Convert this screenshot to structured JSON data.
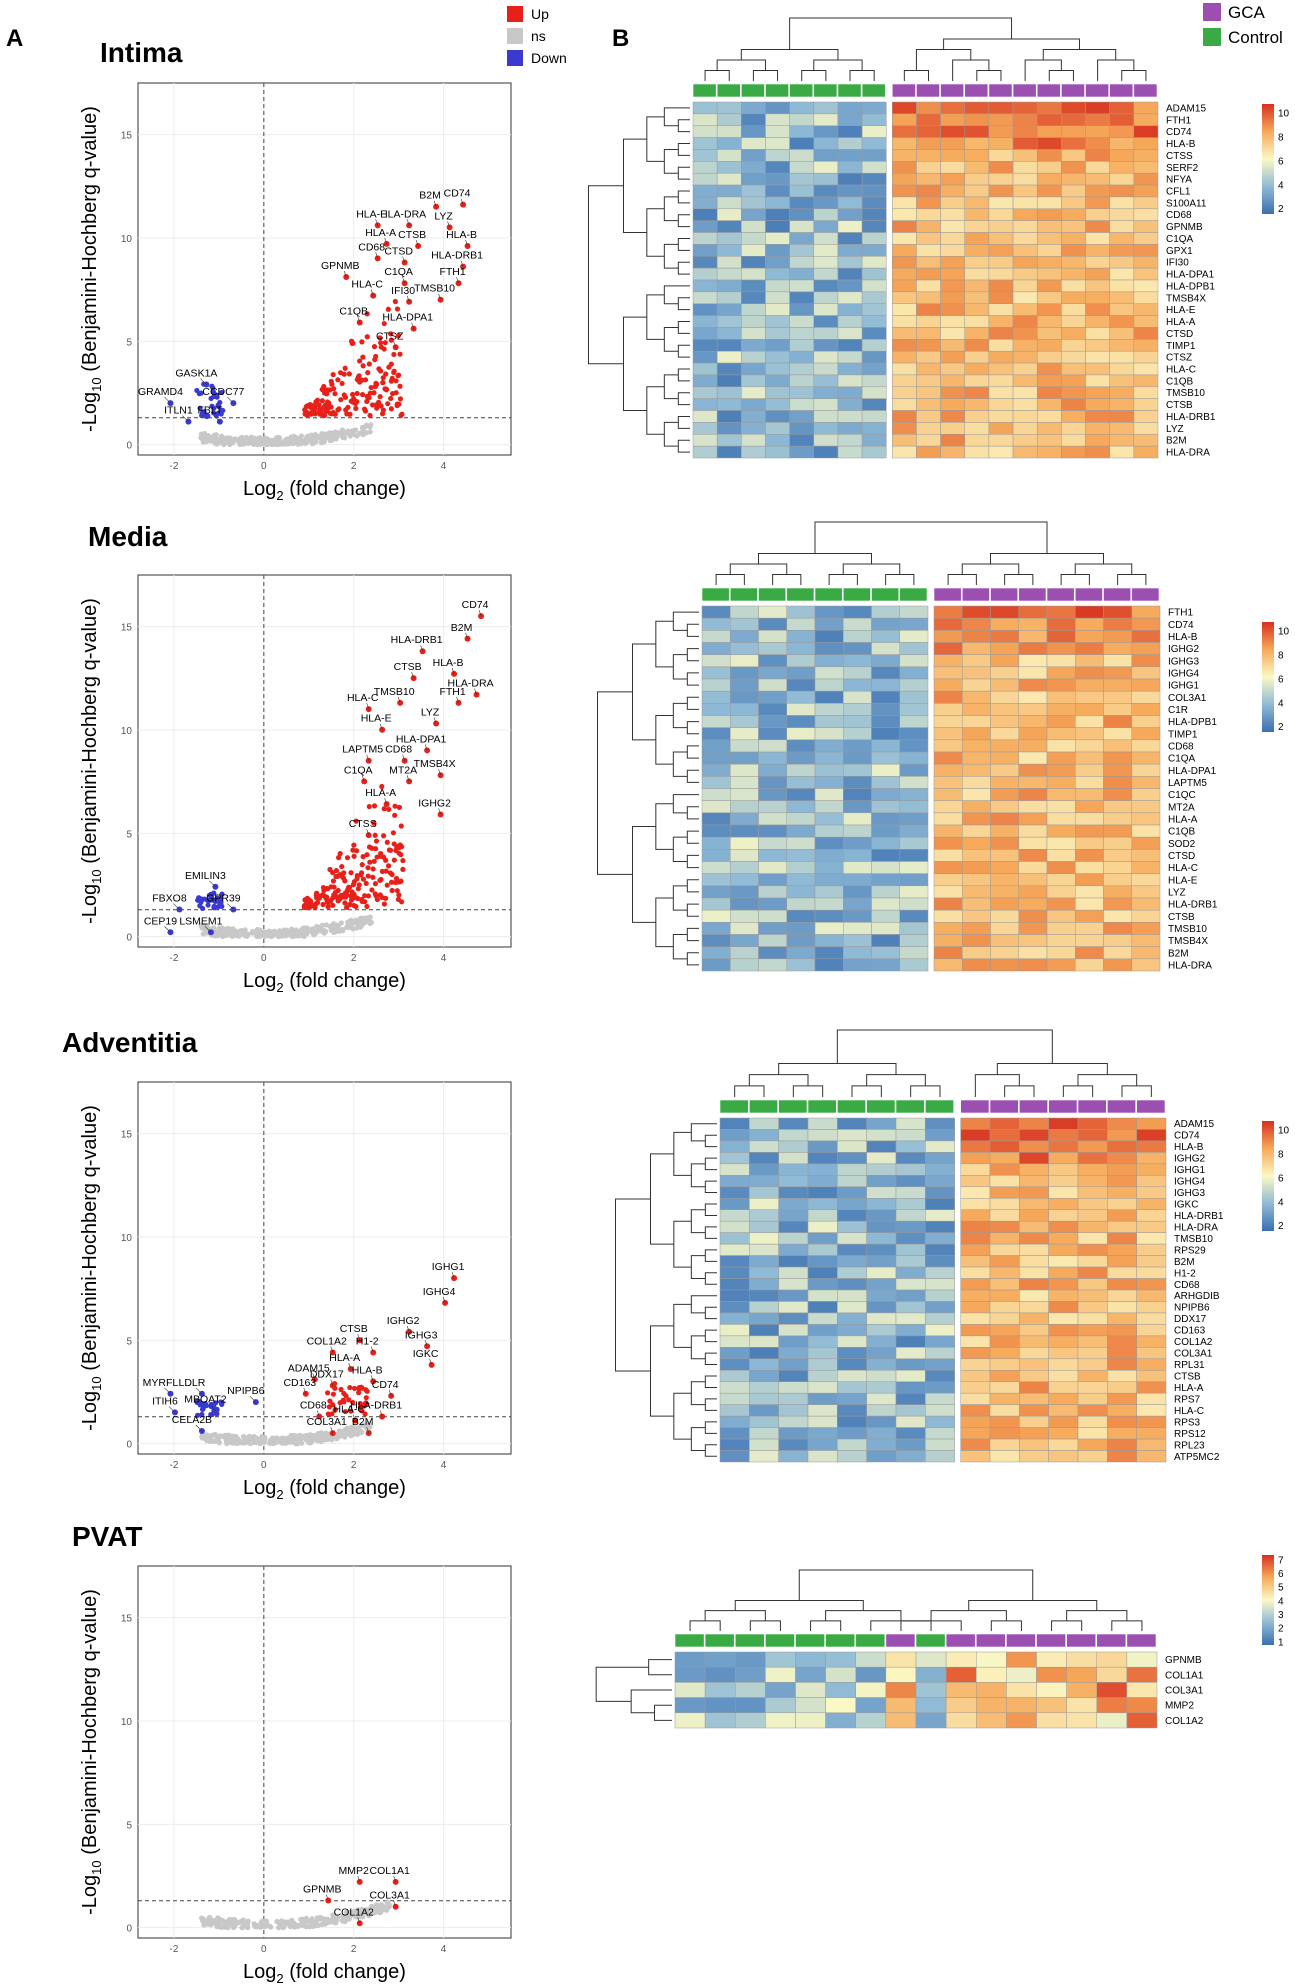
{
  "panel_labels": {
    "A": "A",
    "B": "B"
  },
  "legend": [
    {
      "label": "Up",
      "color": "#e8201a"
    },
    {
      "label": "ns",
      "color": "#c8c8c8"
    },
    {
      "label": "Down",
      "color": "#3a3ad0"
    }
  ],
  "group_legend": [
    {
      "label": "GCA",
      "color": "#9b4fb0"
    },
    {
      "label": "Control",
      "color": "#3aaa44"
    }
  ],
  "axis": {
    "xlabel": "Log",
    "xlabel_sub": "2",
    "xlabel_tail": " (fold change)",
    "ylabel_pre": "-Log",
    "ylabel_sub": "10",
    "ylabel_tail": " (Benjamini-Hochberg q-value)",
    "xticks": [
      "-2",
      "0",
      "2",
      "4"
    ],
    "yticks": [
      "0",
      "5",
      "10",
      "15"
    ]
  },
  "colorbar_ticks_main": [
    "2",
    "4",
    "6",
    "8",
    "10"
  ],
  "colorbar_ticks_pvat": [
    "1",
    "2",
    "3",
    "4",
    "5",
    "6",
    "7"
  ],
  "chart_data": [
    {
      "type": "scatter",
      "title": "Intima",
      "xlim": [
        -2.8,
        5.5
      ],
      "ylim": [
        -0.5,
        17.5
      ],
      "threshold_q": 1.3,
      "labels": [
        {
          "text": "B2M",
          "x": 3.7,
          "y": 11.9
        },
        {
          "text": "CD74",
          "x": 4.3,
          "y": 12.0
        },
        {
          "text": "HLA-E",
          "x": 2.4,
          "y": 11.0
        },
        {
          "text": "HLA-DRA",
          "x": 3.1,
          "y": 11.0
        },
        {
          "text": "LYZ",
          "x": 4.0,
          "y": 10.9
        },
        {
          "text": "HLA-A",
          "x": 2.6,
          "y": 10.1
        },
        {
          "text": "CTSB",
          "x": 3.3,
          "y": 10.0
        },
        {
          "text": "HLA-B",
          "x": 4.4,
          "y": 10.0
        },
        {
          "text": "CD68",
          "x": 2.4,
          "y": 9.4
        },
        {
          "text": "CTSD",
          "x": 3.0,
          "y": 9.2
        },
        {
          "text": "HLA-DRB1",
          "x": 4.3,
          "y": 9.0
        },
        {
          "text": "GPNMB",
          "x": 1.7,
          "y": 8.5
        },
        {
          "text": "C1QA",
          "x": 3.0,
          "y": 8.2
        },
        {
          "text": "FTH1",
          "x": 4.2,
          "y": 8.2
        },
        {
          "text": "HLA-C",
          "x": 2.3,
          "y": 7.6
        },
        {
          "text": "IFI30",
          "x": 3.1,
          "y": 7.3
        },
        {
          "text": "TMSB10",
          "x": 3.8,
          "y": 7.4
        },
        {
          "text": "C1QB",
          "x": 2.0,
          "y": 6.3
        },
        {
          "text": "HLA-DPA1",
          "x": 3.2,
          "y": 6.0
        },
        {
          "text": "CTSZ",
          "x": 2.8,
          "y": 5.1
        },
        {
          "text": "GASK1A",
          "x": -1.5,
          "y": 3.3
        },
        {
          "text": "GRAMD4",
          "x": -2.3,
          "y": 2.4
        },
        {
          "text": "CCDC77",
          "x": -0.9,
          "y": 2.4
        },
        {
          "text": "ITLN1",
          "x": -1.9,
          "y": 1.5
        },
        {
          "text": "FBLT",
          "x": -1.2,
          "y": 1.5
        }
      ]
    },
    {
      "type": "scatter",
      "title": "Media",
      "xlim": [
        -2.8,
        5.5
      ],
      "ylim": [
        -0.5,
        17.5
      ],
      "threshold_q": 1.3,
      "labels": [
        {
          "text": "CD74",
          "x": 4.7,
          "y": 15.9
        },
        {
          "text": "B2M",
          "x": 4.4,
          "y": 14.8
        },
        {
          "text": "HLA-DRB1",
          "x": 3.4,
          "y": 14.2
        },
        {
          "text": "CTSB",
          "x": 3.2,
          "y": 12.9
        },
        {
          "text": "HLA-B",
          "x": 4.1,
          "y": 13.1
        },
        {
          "text": "HLA-DRA",
          "x": 4.6,
          "y": 12.1
        },
        {
          "text": "HLA-C",
          "x": 2.2,
          "y": 11.4
        },
        {
          "text": "TMSB10",
          "x": 2.9,
          "y": 11.7
        },
        {
          "text": "FTH1",
          "x": 4.2,
          "y": 11.7
        },
        {
          "text": "HLA-E",
          "x": 2.5,
          "y": 10.4
        },
        {
          "text": "LYZ",
          "x": 3.7,
          "y": 10.7
        },
        {
          "text": "HLA-DPA1",
          "x": 3.5,
          "y": 9.4
        },
        {
          "text": "LAPTM5",
          "x": 2.2,
          "y": 8.9
        },
        {
          "text": "CD68",
          "x": 3.0,
          "y": 8.9
        },
        {
          "text": "TMSB4X",
          "x": 3.8,
          "y": 8.2
        },
        {
          "text": "C1QA",
          "x": 2.1,
          "y": 7.9
        },
        {
          "text": "MT2A",
          "x": 3.1,
          "y": 7.9
        },
        {
          "text": "HLA-A",
          "x": 2.6,
          "y": 6.8
        },
        {
          "text": "IGHG2",
          "x": 3.8,
          "y": 6.3
        },
        {
          "text": "CTSS",
          "x": 2.2,
          "y": 5.3
        },
        {
          "text": "EMILIN3",
          "x": -1.3,
          "y": 2.8
        },
        {
          "text": "FBXO8",
          "x": -2.1,
          "y": 1.7
        },
        {
          "text": "GPR39",
          "x": -0.9,
          "y": 1.7
        },
        {
          "text": "CEP19",
          "x": -2.3,
          "y": 0.6
        },
        {
          "text": "LSMEM1",
          "x": -1.4,
          "y": 0.6
        }
      ]
    },
    {
      "type": "scatter",
      "title": "Adventitia",
      "xlim": [
        -2.8,
        5.5
      ],
      "ylim": [
        -0.5,
        17.5
      ],
      "threshold_q": 1.3,
      "labels": [
        {
          "text": "IGHG1",
          "x": 4.1,
          "y": 8.4
        },
        {
          "text": "IGHG4",
          "x": 3.9,
          "y": 7.2
        },
        {
          "text": "IGHG2",
          "x": 3.1,
          "y": 5.8
        },
        {
          "text": "IGHG3",
          "x": 3.5,
          "y": 5.1
        },
        {
          "text": "IGKC",
          "x": 3.6,
          "y": 4.2
        },
        {
          "text": "CTSB",
          "x": 2.0,
          "y": 5.4
        },
        {
          "text": "COL1A2",
          "x": 1.4,
          "y": 4.8
        },
        {
          "text": "H1-2",
          "x": 2.3,
          "y": 4.8
        },
        {
          "text": "HLA-A",
          "x": 1.8,
          "y": 4.0
        },
        {
          "text": "ADAM15",
          "x": 1.0,
          "y": 3.5
        },
        {
          "text": "HLA-B",
          "x": 2.3,
          "y": 3.4
        },
        {
          "text": "DDX17",
          "x": 1.4,
          "y": 3.2
        },
        {
          "text": "CD163",
          "x": 0.8,
          "y": 2.8
        },
        {
          "text": "NPIPB6",
          "x": -0.4,
          "y": 2.4
        },
        {
          "text": "CD74",
          "x": 2.7,
          "y": 2.7
        },
        {
          "text": "CD68",
          "x": 1.1,
          "y": 1.7
        },
        {
          "text": "HLA-C",
          "x": 1.9,
          "y": 1.5
        },
        {
          "text": "HLA-DRB1",
          "x": 2.5,
          "y": 1.7
        },
        {
          "text": "COL3A1",
          "x": 1.4,
          "y": 0.9
        },
        {
          "text": "B2M",
          "x": 2.2,
          "y": 0.9
        },
        {
          "text": "MYRFL",
          "x": -2.3,
          "y": 2.8
        },
        {
          "text": "LDLR",
          "x": -1.6,
          "y": 2.8
        },
        {
          "text": "ITIH6",
          "x": -2.2,
          "y": 1.9
        },
        {
          "text": "MBOAT2",
          "x": -1.3,
          "y": 2.0
        },
        {
          "text": "CELA2B",
          "x": -1.6,
          "y": 1.0
        }
      ]
    },
    {
      "type": "scatter",
      "title": "PVAT",
      "xlim": [
        -2.8,
        5.5
      ],
      "ylim": [
        -0.5,
        17.5
      ],
      "threshold_q": 1.3,
      "labels": [
        {
          "text": "MMP2",
          "x": 2.0,
          "y": 2.6
        },
        {
          "text": "COL1A1",
          "x": 2.8,
          "y": 2.6
        },
        {
          "text": "GPNMB",
          "x": 1.3,
          "y": 1.7
        },
        {
          "text": "COL3A1",
          "x": 2.8,
          "y": 1.4
        },
        {
          "text": "COL1A2",
          "x": 2.0,
          "y": 0.6
        }
      ]
    },
    {
      "type": "heatmap",
      "name": "Intima heatmap",
      "groups": {
        "control": 8,
        "gca": 11
      },
      "genes": [
        "ADAM15",
        "FTH1",
        "CD74",
        "HLA-B",
        "CTSS",
        "SERF2",
        "NFYA",
        "CFL1",
        "S100A11",
        "CD68",
        "GPNMB",
        "C1QA",
        "GPX1",
        "IFI30",
        "HLA-DPA1",
        "HLA-DPB1",
        "TMSB4X",
        "HLA-E",
        "HLA-A",
        "CTSD",
        "TIMP1",
        "CTSZ",
        "HLA-C",
        "C1QB",
        "TMSB10",
        "CTSB",
        "HLA-DRB1",
        "LYZ",
        "B2M",
        "HLA-DRA"
      ]
    },
    {
      "type": "heatmap",
      "name": "Media heatmap",
      "groups": {
        "control": 8,
        "gca": 8
      },
      "genes": [
        "FTH1",
        "CD74",
        "HLA-B",
        "IGHG2",
        "IGHG3",
        "IGHG4",
        "IGHG1",
        "COL3A1",
        "C1R",
        "HLA-DPB1",
        "TIMP1",
        "CD68",
        "C1QA",
        "HLA-DPA1",
        "LAPTM5",
        "C1QC",
        "MT2A",
        "HLA-A",
        "C1QB",
        "SOD2",
        "CTSD",
        "HLA-C",
        "HLA-E",
        "LYZ",
        "HLA-DRB1",
        "CTSB",
        "TMSB10",
        "TMSB4X",
        "B2M",
        "HLA-DRA"
      ]
    },
    {
      "type": "heatmap",
      "name": "Adventitia heatmap",
      "groups": {
        "control": 8,
        "gca": 7
      },
      "genes": [
        "ADAM15",
        "CD74",
        "HLA-B",
        "IGHG2",
        "IGHG1",
        "IGHG4",
        "IGHG3",
        "IGKC",
        "HLA-DRB1",
        "HLA-DRA",
        "TMSB10",
        "RPS29",
        "B2M",
        "H1-2",
        "CD68",
        "ARHGDIB",
        "NPIPB6",
        "DDX17",
        "CD163",
        "COL1A2",
        "COL3A1",
        "RPL31",
        "CTSB",
        "HLA-A",
        "RPS7",
        "HLA-C",
        "RPS3",
        "RPS12",
        "RPL23",
        "ATP5MC2"
      ]
    },
    {
      "type": "heatmap",
      "name": "PVAT heatmap",
      "group_bar": [
        "control",
        "control",
        "control",
        "control",
        "control",
        "control",
        "control",
        "gca",
        "control",
        "gca",
        "gca",
        "gca",
        "gca",
        "gca",
        "gca",
        "gca"
      ],
      "genes": [
        "GPNMB",
        "COL1A1",
        "COL3A1",
        "MMP2",
        "COL1A2"
      ]
    }
  ]
}
